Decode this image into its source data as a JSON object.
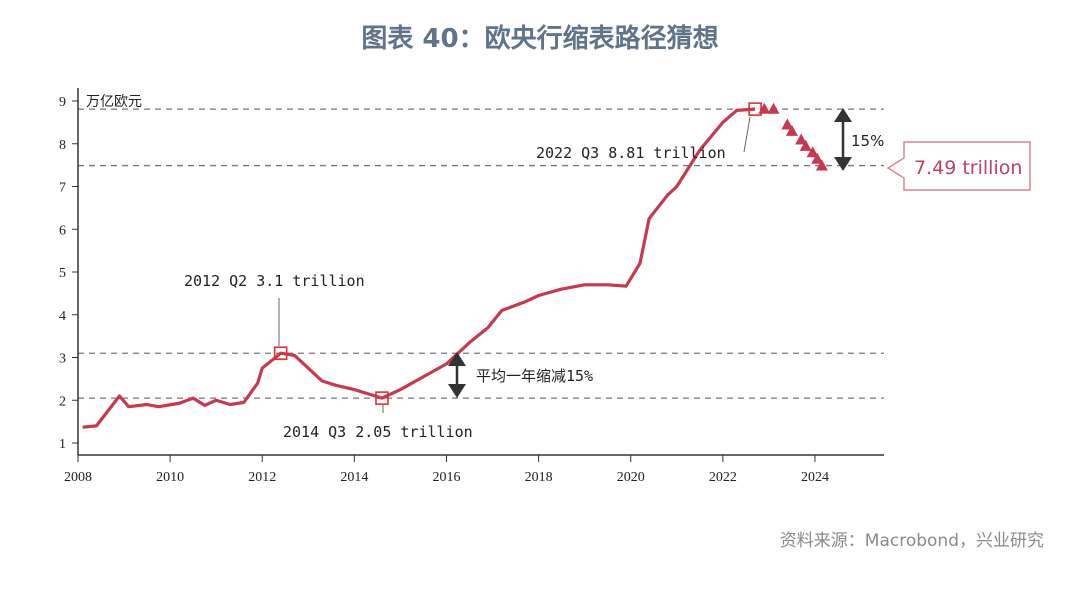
{
  "title": "图表 40：欧央行缩表路径猜想",
  "source": "资料来源：Macrobond，兴业研究",
  "chart_data": {
    "type": "line",
    "ylabel": "万亿欧元",
    "xlim": [
      2008,
      2025.5
    ],
    "ylim": [
      0.7,
      9.3
    ],
    "xticks": [
      "2008",
      "2010",
      "2012",
      "2014",
      "2016",
      "2018",
      "2020",
      "2022",
      "2024"
    ],
    "yticks": [
      "1",
      "2",
      "3",
      "4",
      "5",
      "6",
      "7",
      "8",
      "9"
    ],
    "color": "#c8394f",
    "series": [
      {
        "kind": "actual",
        "x": [
          2008.1,
          2008.4,
          2008.9,
          2009.1,
          2009.5,
          2009.75,
          2010.2,
          2010.5,
          2010.75,
          2011.0,
          2011.3,
          2011.6,
          2011.9,
          2012.0,
          2012.4,
          2012.7,
          2013.0,
          2013.3,
          2013.6,
          2014.0,
          2014.6,
          2015.0,
          2015.5,
          2016.0,
          2016.5,
          2016.9,
          2017.2,
          2017.7,
          2018.0,
          2018.5,
          2019.0,
          2019.5,
          2019.9,
          2020.2,
          2020.4,
          2020.8,
          2021.0,
          2021.5,
          2022.0,
          2022.3,
          2022.7
        ],
        "y": [
          1.37,
          1.4,
          2.1,
          1.85,
          1.9,
          1.85,
          1.93,
          2.05,
          1.88,
          2.0,
          1.9,
          1.95,
          2.4,
          2.75,
          3.1,
          3.05,
          2.75,
          2.45,
          2.35,
          2.25,
          2.05,
          2.25,
          2.55,
          2.85,
          3.35,
          3.7,
          4.1,
          4.3,
          4.45,
          4.6,
          4.7,
          4.7,
          4.67,
          5.2,
          6.25,
          6.8,
          7.0,
          7.85,
          8.5,
          8.78,
          8.81
        ]
      },
      {
        "kind": "projection",
        "marker": "triangle",
        "x": [
          2022.9,
          2023.1,
          2023.4,
          2023.5,
          2023.7,
          2023.8,
          2023.95,
          2024.05,
          2024.15
        ],
        "y": [
          8.82,
          8.82,
          8.45,
          8.3,
          8.1,
          7.95,
          7.8,
          7.65,
          7.49
        ]
      }
    ],
    "reference_lines": [
      8.81,
      7.49,
      3.1,
      2.05
    ],
    "annotations": [
      {
        "text": "2012 Q2 3.1 trillion",
        "x": 2012.4,
        "y": 3.1
      },
      {
        "text": "2014 Q3 2.05 trillion",
        "x": 2014.6,
        "y": 2.05
      },
      {
        "text": "2022 Q3 8.81 trillion",
        "x": 2022.7,
        "y": 8.81
      },
      {
        "text": "平均一年缩减15%"
      },
      {
        "text": "15%"
      },
      {
        "text": "7.49 trillion"
      }
    ]
  }
}
